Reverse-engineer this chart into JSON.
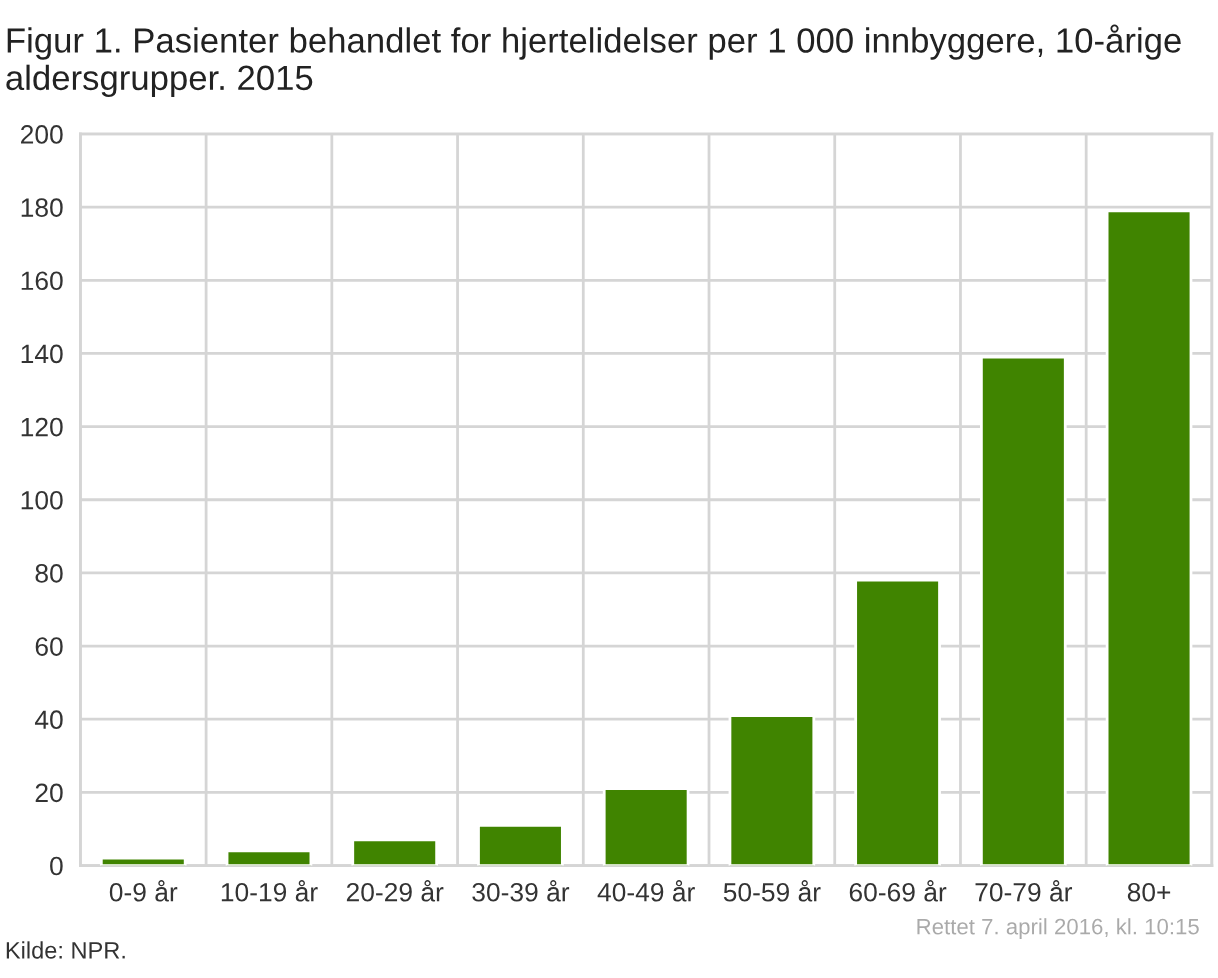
{
  "chart_data": {
    "type": "bar",
    "title": "Figur 1. Pasienter behandlet for hjertelidelser per 1 000 innbyggere, 10-årige aldersgrupper. 2015",
    "categories": [
      "0-9 år",
      "10-19 år",
      "20-29 år",
      "30-39 år",
      "40-49 år",
      "50-59 år",
      "60-69 år",
      "70-79 år",
      "80+"
    ],
    "values": [
      2,
      4,
      7,
      11,
      21,
      41,
      78,
      139,
      179
    ],
    "color": "#408400",
    "ylim": [
      0,
      200
    ],
    "yticks": [
      0,
      20,
      40,
      60,
      80,
      100,
      120,
      140,
      160,
      180,
      200
    ],
    "grid": true,
    "legend": false,
    "annotations": [
      "Kilde: NPR.",
      "Rettet 7. april 2016, kl. 10:15"
    ]
  }
}
